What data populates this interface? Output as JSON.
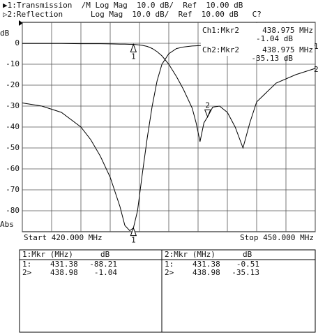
{
  "header": {
    "line1": "▶1:Transmission  /M Log Mag  10.0 dB/  Ref  10.00 dB",
    "line2": "▷2:Reflection      Log Mag  10.0 dB/  Ref  10.00 dB   C?"
  },
  "chart_data": {
    "type": "line",
    "y_label_top": "dB",
    "y_label_bottom": "Abs",
    "start_label": "Start 420.000 MHz",
    "stop_label": "Stop 450.000 MHz",
    "xlim": [
      420,
      450
    ],
    "xticks": [
      420,
      423,
      426,
      429,
      432,
      435,
      438,
      441,
      444,
      447,
      450
    ],
    "ylim": [
      -90,
      10
    ],
    "yticks": [
      0,
      -10,
      -20,
      -30,
      -40,
      -50,
      -60,
      -70,
      -80
    ],
    "grid": true,
    "x": [
      420,
      422,
      424,
      426,
      427,
      428,
      429,
      430,
      430.5,
      431,
      431.38,
      431.8,
      432.3,
      432.8,
      433.3,
      433.8,
      434.3,
      435,
      435.8,
      436.5,
      437,
      437.4,
      437.8,
      438.2,
      438.6,
      438.98,
      439.5,
      440.2,
      441,
      441.8,
      442.6,
      443.3,
      444,
      446,
      448,
      450
    ],
    "series": [
      {
        "name": "1",
        "color": "#000000",
        "values": [
          -28.5,
          -30,
          -33,
          -40,
          -46,
          -54,
          -64,
          -78,
          -87,
          -89.5,
          -88.21,
          -80,
          -62,
          -45,
          -30,
          -18,
          -10,
          -5,
          -2.5,
          -1.8,
          -1.5,
          -1.3,
          -1.2,
          -1.1,
          -1.06,
          -1.04,
          -0.9,
          -0.8,
          -0.7,
          -0.6,
          -0.5,
          -0.5,
          -0.5,
          -0.6,
          -0.8,
          -1.0
        ]
      },
      {
        "name": "2",
        "color": "#000000",
        "values": [
          -0.1,
          -0.1,
          -0.1,
          -0.2,
          -0.2,
          -0.2,
          -0.3,
          -0.4,
          -0.4,
          -0.5,
          -0.51,
          -0.7,
          -1,
          -1.5,
          -2.5,
          -4,
          -6,
          -10,
          -16,
          -22,
          -27,
          -31,
          -38,
          -47,
          -38,
          -35.13,
          -30.5,
          -30,
          -33,
          -40,
          -50,
          -38,
          -28,
          -19,
          -15,
          -12
        ]
      }
    ],
    "markers": [
      {
        "label": "1",
        "x": 431.38,
        "y": -88.21
      },
      {
        "label": "2",
        "x": 438.98,
        "y": -1.04
      },
      {
        "label": "1",
        "x": 431.38,
        "y": -0.51
      },
      {
        "label": "2",
        "x": 438.98,
        "y": -35.13
      }
    ],
    "readout": [
      {
        "name": "Ch1:Mkr2",
        "freq": "438.975 MHz",
        "value": "-1.04 dB"
      },
      {
        "name": "Ch2:Mkr2",
        "freq": "438.975 MHz",
        "value": "-35.13 dB"
      }
    ]
  },
  "tables": [
    {
      "header": [
        "1:Mkr (MHz)",
        "dB"
      ],
      "rows": [
        [
          "1:",
          "431.38",
          "-88.21"
        ],
        [
          "2>",
          "438.98",
          "-1.04"
        ]
      ]
    },
    {
      "header": [
        "2:Mkr (MHz)",
        "dB"
      ],
      "rows": [
        [
          "1:",
          "431.38",
          "-0.51"
        ],
        [
          "2>",
          "438.98",
          "-35.13"
        ]
      ]
    }
  ]
}
